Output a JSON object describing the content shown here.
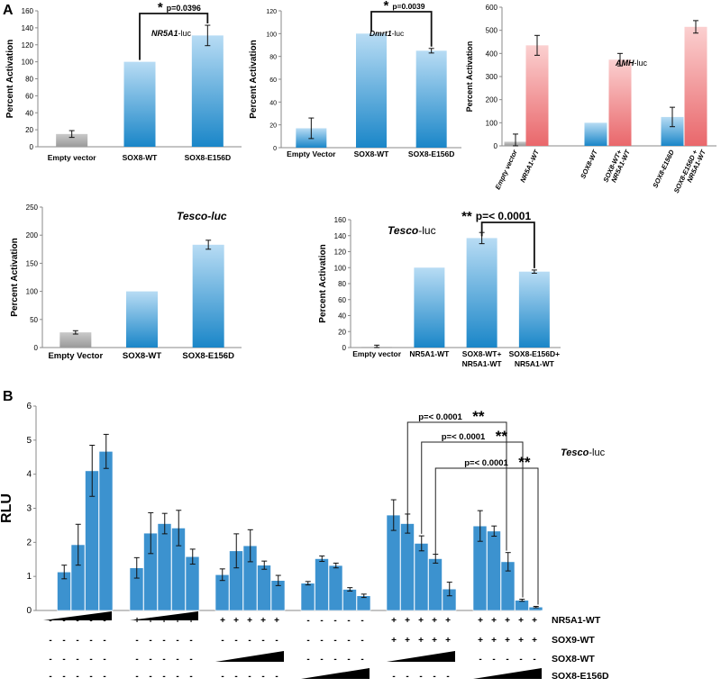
{
  "colors": {
    "blue_top": "#b8dcf4",
    "blue_bottom": "#1a86c8",
    "red_top": "#fbd0d0",
    "red_bottom": "#e9676b",
    "grey": "#a9a9a9",
    "solid_blue": "#3c92cf",
    "axis": "#8a8a8a"
  },
  "panel_labels": [
    "A",
    "B"
  ],
  "chart_data": [
    {
      "id": "a1",
      "type": "bar",
      "title_italic": "NR5A1",
      "title_rest": "-luc",
      "ylabel": "Percent Activation",
      "ylim": [
        0,
        160
      ],
      "yticks": [
        0,
        20,
        40,
        60,
        80,
        100,
        120,
        140,
        160
      ],
      "categories": [
        "Empty vector",
        "SOX8-WT",
        "SOX8-E156D"
      ],
      "values": [
        15,
        100,
        131
      ],
      "errors": [
        4,
        0.5,
        12
      ],
      "colors": [
        "grey",
        "blue",
        "blue"
      ],
      "significance": {
        "from": 1,
        "to": 2,
        "stars": "*",
        "p": "p=0.0396"
      }
    },
    {
      "id": "a2",
      "type": "bar",
      "title_italic": "Dmrt1",
      "title_rest": "-luc",
      "ylabel": "Percent Activation",
      "ylim": [
        0,
        120
      ],
      "yticks": [
        0,
        20,
        40,
        60,
        80,
        100,
        120
      ],
      "categories": [
        "Empty Vector",
        "SOX8-WT",
        "SOX8-E156D"
      ],
      "values": [
        17,
        100,
        85
      ],
      "errors": [
        9,
        0.5,
        2
      ],
      "colors": [
        "blue",
        "blue",
        "blue"
      ],
      "significance": {
        "from": 1,
        "to": 2,
        "stars": "*",
        "p": "p=0.0039"
      }
    },
    {
      "id": "a3",
      "type": "bar",
      "title_italic": "AMH",
      "title_rest": "-luc",
      "ylabel": "Percent Activation",
      "ylim": [
        0,
        600
      ],
      "yticks": [
        0,
        100,
        200,
        300,
        400,
        500,
        600
      ],
      "categories": [
        "Empty vector",
        "NR5A1-WT",
        "SOX8-WT",
        "SOX8-WT+ NR5A1-WT",
        "SOX8-E156D",
        "SOX8-E156D + NR5A1-WT"
      ],
      "values": [
        18,
        435,
        100,
        373,
        125,
        515
      ],
      "errors": [
        33,
        43,
        1,
        27,
        42,
        27
      ],
      "colors": [
        "grey",
        "red",
        "blue",
        "red",
        "blue",
        "red"
      ]
    },
    {
      "id": "a4",
      "type": "bar",
      "title": "Tesco-luc",
      "ylabel": "Percent Activation",
      "ylim": [
        0,
        250
      ],
      "yticks": [
        0,
        50,
        100,
        150,
        200,
        250
      ],
      "categories": [
        "Empty Vector",
        "SOX8-WT",
        "SOX8-E156D"
      ],
      "values": [
        27,
        100,
        183
      ],
      "errors": [
        3,
        0.5,
        8
      ],
      "colors": [
        "grey",
        "blue",
        "blue"
      ]
    },
    {
      "id": "a5",
      "type": "bar",
      "title_italic": "Tesco",
      "title_rest": "-luc",
      "ylabel": "Percent Activation",
      "ylim": [
        0,
        160
      ],
      "yticks": [
        0,
        20,
        40,
        60,
        80,
        100,
        120,
        140,
        160
      ],
      "categories": [
        "Empty vector",
        "NR5A1-WT",
        "SOX8-WT+ NR5A1-WT",
        "SOX8-E156D+ NR5A1-WT"
      ],
      "values": [
        1,
        100,
        137,
        95
      ],
      "errors": [
        2,
        0.5,
        7,
        2
      ],
      "colors": [
        "grey",
        "blue",
        "blue",
        "blue"
      ],
      "significance": {
        "from": 2,
        "to": 3,
        "stars": "**",
        "p": "p=< 0.0001"
      }
    },
    {
      "id": "b",
      "type": "bar",
      "title_italic": "Tesco",
      "title_rest": "-luc",
      "ylabel": "RLU",
      "ylim": [
        0,
        6
      ],
      "yticks": [
        0,
        1,
        2,
        3,
        4,
        5,
        6
      ],
      "groups": [
        {
          "values": [
            0,
            1.13,
            1.93,
            4.1,
            4.67
          ],
          "errors": [
            0,
            0.2,
            0.6,
            0.75,
            0.5
          ]
        },
        {
          "values": [
            1.25,
            2.27,
            2.55,
            2.42,
            1.58
          ],
          "errors": [
            0.3,
            0.6,
            0.3,
            0.52,
            0.22
          ]
        },
        {
          "values": [
            1.05,
            1.75,
            1.9,
            1.33,
            0.88
          ],
          "errors": [
            0.17,
            0.5,
            0.47,
            0.12,
            0.15
          ]
        },
        {
          "values": [
            0.8,
            1.52,
            1.32,
            0.62,
            0.43
          ],
          "errors": [
            0.05,
            0.08,
            0.07,
            0.05,
            0.05
          ]
        },
        {
          "values": [
            2.8,
            2.55,
            1.97,
            1.52,
            0.63
          ],
          "errors": [
            0.45,
            0.28,
            0.22,
            0.13,
            0.2
          ]
        },
        {
          "values": [
            2.48,
            2.33,
            1.43,
            0.3,
            0.1
          ],
          "errors": [
            0.45,
            0.15,
            0.27,
            0.03,
            0.02
          ]
        }
      ],
      "comparisons": [
        {
          "p": "p=< 0.0001",
          "stars": "**"
        },
        {
          "p": "p=< 0.0001",
          "stars": "**"
        },
        {
          "p": "p=< 0.0001",
          "stars": "**"
        }
      ],
      "conditions": [
        {
          "label": "NR5A1-WT",
          "cells": [
            "-----",
            "+++++",
            "+++++",
            "-----",
            "+++++",
            "+++++"
          ]
        },
        {
          "label": "SOX9-WT",
          "cells": [
            "-----",
            "-----",
            "-----",
            "-----",
            "+++++",
            "+++++"
          ]
        },
        {
          "label": "SOX8-WT",
          "cells": [
            "-----",
            "-----",
            "ramp",
            "-----",
            "ramp",
            "-----"
          ]
        },
        {
          "label": "SOX8-E156D",
          "cells": [
            "-----",
            "-----",
            "-----",
            "ramp",
            "-----",
            "ramp"
          ]
        }
      ],
      "dose_ramp_row0": [
        "ramp",
        "ramp",
        "",
        "",
        "",
        ""
      ]
    }
  ]
}
